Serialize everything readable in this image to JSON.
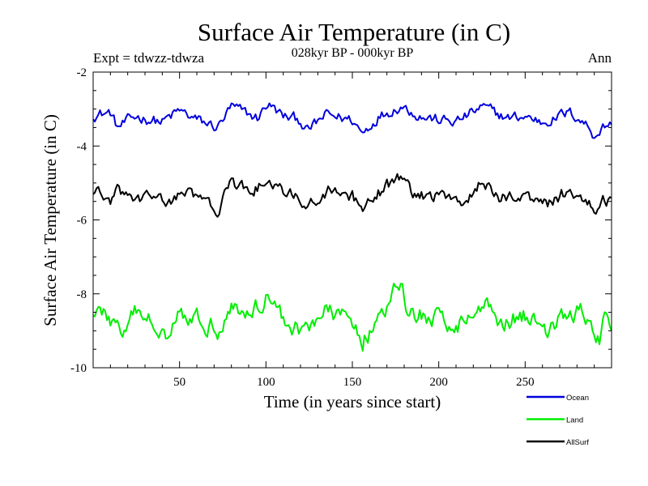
{
  "header": {
    "title": "Surface Air Temperature (in C)",
    "subtitle": "028kyr BP - 000kyr BP",
    "left_label": "Expt = tdwzz-tdwza",
    "right_label": "Ann"
  },
  "chart_data": {
    "type": "line",
    "xlabel": "Time (in years since start)",
    "ylabel": "Surface Air Temperature (in C)",
    "xlim": [
      0,
      300
    ],
    "ylim": [
      -10,
      -2
    ],
    "x_ticks": [
      50,
      100,
      150,
      200,
      250
    ],
    "y_ticks": [
      -2,
      -4,
      -6,
      -8,
      -10
    ],
    "legend_position": "bottom-right-outside",
    "series": [
      {
        "name": "Ocean",
        "color": "#0000dd",
        "base": -3.3,
        "noise": 0.13,
        "anchors": [
          [
            0,
            -3.15
          ],
          [
            10,
            -3.1
          ],
          [
            14,
            -3.5
          ],
          [
            25,
            -3.2
          ],
          [
            40,
            -3.35
          ],
          [
            50,
            -3.05
          ],
          [
            60,
            -3.3
          ],
          [
            72,
            -3.5
          ],
          [
            80,
            -2.95
          ],
          [
            90,
            -3.15
          ],
          [
            95,
            -3.25
          ],
          [
            101,
            -2.85
          ],
          [
            110,
            -3.2
          ],
          [
            120,
            -3.3
          ],
          [
            124,
            -3.6
          ],
          [
            135,
            -3.15
          ],
          [
            150,
            -3.3
          ],
          [
            156,
            -3.65
          ],
          [
            165,
            -3.2
          ],
          [
            178,
            -2.9
          ],
          [
            190,
            -3.2
          ],
          [
            200,
            -3.3
          ],
          [
            210,
            -3.35
          ],
          [
            225,
            -2.95
          ],
          [
            240,
            -3.25
          ],
          [
            250,
            -3.2
          ],
          [
            260,
            -3.35
          ],
          [
            275,
            -3.1
          ],
          [
            280,
            -3.2
          ],
          [
            285,
            -3.4
          ],
          [
            290,
            -3.7
          ],
          [
            295,
            -3.5
          ],
          [
            300,
            -3.35
          ]
        ]
      },
      {
        "name": "Land",
        "color": "#00ee00",
        "base": -8.7,
        "noise": 0.22,
        "anchors": [
          [
            0,
            -8.4
          ],
          [
            8,
            -8.6
          ],
          [
            18,
            -9.1
          ],
          [
            25,
            -8.5
          ],
          [
            35,
            -8.8
          ],
          [
            42,
            -9.0
          ],
          [
            50,
            -8.4
          ],
          [
            60,
            -8.7
          ],
          [
            72,
            -8.9
          ],
          [
            80,
            -8.3
          ],
          [
            90,
            -8.6
          ],
          [
            101,
            -8.0
          ],
          [
            110,
            -8.7
          ],
          [
            120,
            -9.0
          ],
          [
            125,
            -8.8
          ],
          [
            135,
            -8.5
          ],
          [
            150,
            -8.7
          ],
          [
            156,
            -9.2
          ],
          [
            165,
            -8.8
          ],
          [
            178,
            -7.7
          ],
          [
            182,
            -8.5
          ],
          [
            190,
            -8.6
          ],
          [
            200,
            -8.7
          ],
          [
            210,
            -8.8
          ],
          [
            220,
            -8.6
          ],
          [
            226,
            -8.2
          ],
          [
            235,
            -8.7
          ],
          [
            250,
            -8.6
          ],
          [
            262,
            -8.9
          ],
          [
            275,
            -8.6
          ],
          [
            282,
            -8.5
          ],
          [
            290,
            -9.1
          ],
          [
            293,
            -9.35
          ],
          [
            296,
            -8.7
          ],
          [
            300,
            -8.9
          ]
        ]
      },
      {
        "name": "AllSurf",
        "color": "#000000",
        "base": -5.4,
        "noise": 0.15,
        "anchors": [
          [
            0,
            -5.2
          ],
          [
            10,
            -5.5
          ],
          [
            15,
            -5.2
          ],
          [
            25,
            -5.5
          ],
          [
            35,
            -5.3
          ],
          [
            42,
            -5.6
          ],
          [
            50,
            -5.25
          ],
          [
            60,
            -5.4
          ],
          [
            72,
            -5.7
          ],
          [
            80,
            -5.05
          ],
          [
            90,
            -5.2
          ],
          [
            101,
            -5.0
          ],
          [
            110,
            -5.3
          ],
          [
            120,
            -5.4
          ],
          [
            124,
            -5.7
          ],
          [
            135,
            -5.2
          ],
          [
            150,
            -5.4
          ],
          [
            156,
            -5.8
          ],
          [
            165,
            -5.3
          ],
          [
            178,
            -4.8
          ],
          [
            185,
            -5.3
          ],
          [
            195,
            -5.4
          ],
          [
            205,
            -5.3
          ],
          [
            215,
            -5.5
          ],
          [
            225,
            -5.0
          ],
          [
            235,
            -5.4
          ],
          [
            250,
            -5.3
          ],
          [
            262,
            -5.6
          ],
          [
            275,
            -5.2
          ],
          [
            282,
            -5.3
          ],
          [
            290,
            -5.75
          ],
          [
            295,
            -5.5
          ],
          [
            300,
            -5.45
          ]
        ]
      }
    ]
  }
}
